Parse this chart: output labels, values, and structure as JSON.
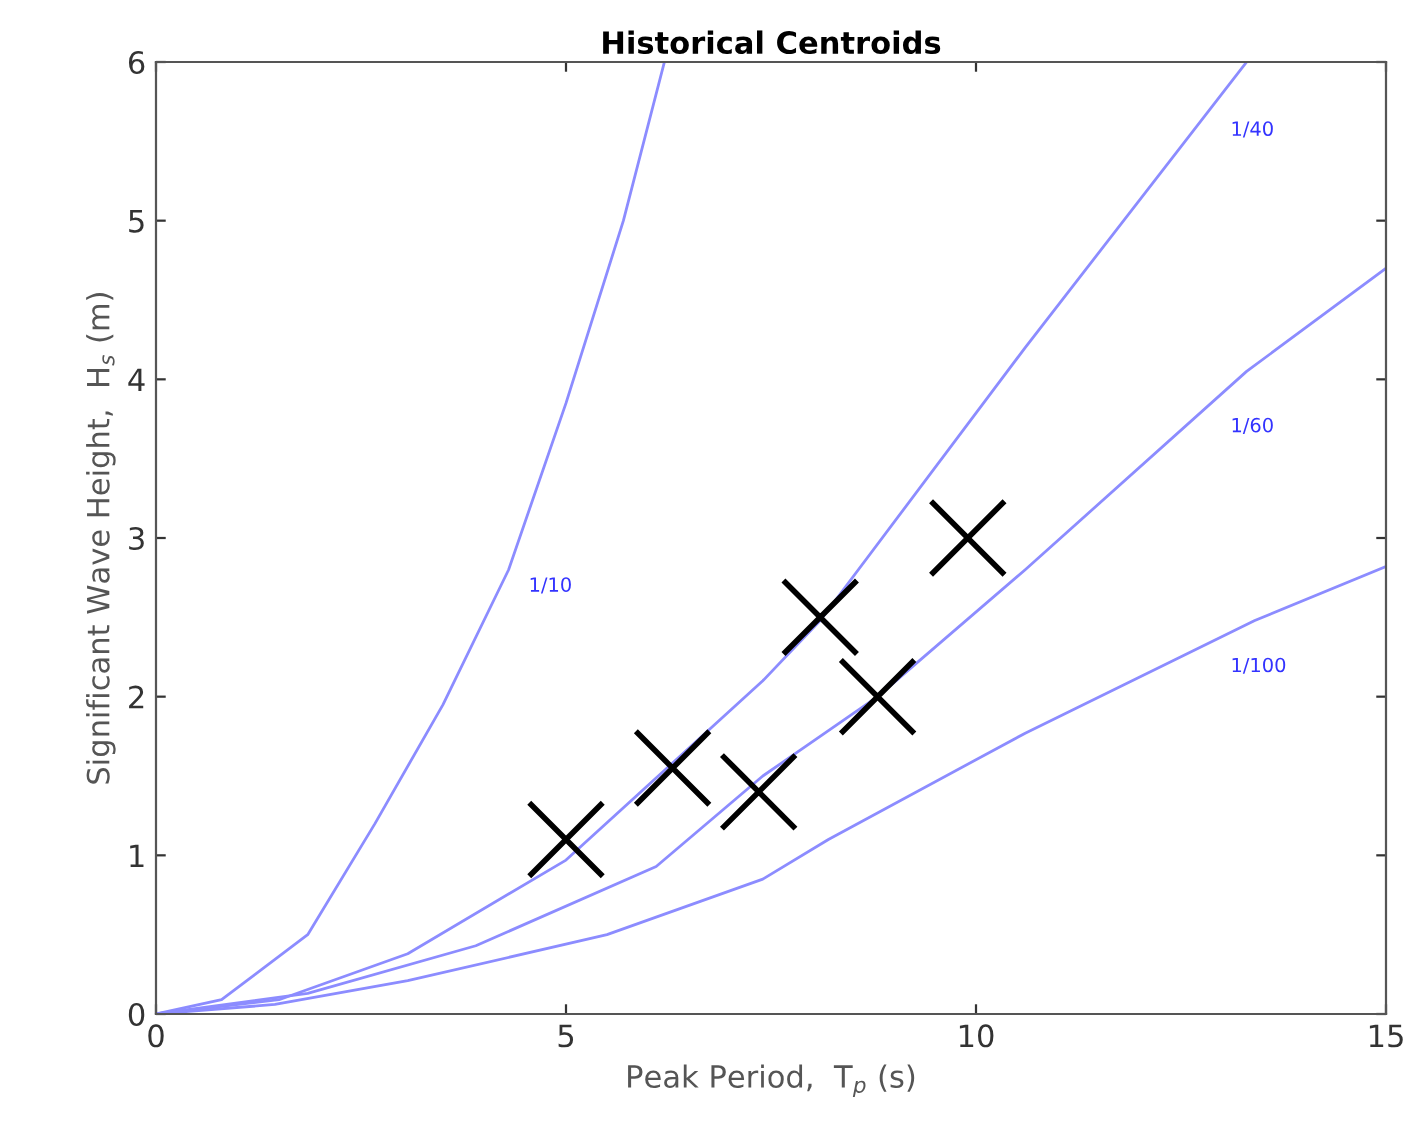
{
  "chart_data": {
    "type": "line",
    "title": "Historical Centroids",
    "xlabel": "Peak Period,  T$_{p}$ (s)",
    "ylabel": "Significant Wave Height,  H$_{s}$ (m)",
    "xlim": [
      0,
      15
    ],
    "ylim": [
      0,
      6
    ],
    "xticks": [
      0,
      5,
      10,
      15
    ],
    "yticks": [
      0,
      1,
      2,
      3,
      4,
      5,
      6
    ],
    "grid": false,
    "legend": false,
    "series": [
      {
        "name": "1/10",
        "color": "#8c8cff",
        "x": [
          0,
          0.8,
          1.85,
          2.67,
          3.5,
          4.3,
          5.0,
          5.7,
          6.2
        ],
        "values": [
          0,
          0.09,
          0.5,
          1.2,
          1.95,
          2.8,
          3.85,
          5.0,
          6.0
        ]
      },
      {
        "name": "1/40",
        "color": "#8c8cff",
        "x": [
          0,
          1.5,
          3.07,
          5.0,
          7.4,
          8.1,
          10.6,
          13.3
        ],
        "values": [
          0,
          0.09,
          0.38,
          0.97,
          2.1,
          2.48,
          4.2,
          6.0
        ]
      },
      {
        "name": "1/60",
        "color": "#8c8cff",
        "x": [
          0,
          1.85,
          3.9,
          6.1,
          7.4,
          8.8,
          10.6,
          13.3,
          15
        ],
        "values": [
          0,
          0.13,
          0.43,
          0.93,
          1.5,
          2.0,
          2.8,
          4.05,
          4.7
        ]
      },
      {
        "name": "1/100",
        "color": "#8c8cff",
        "x": [
          0,
          1.45,
          3.07,
          5.5,
          7.4,
          8.2,
          10.6,
          13.4,
          15
        ],
        "values": [
          0,
          0.06,
          0.21,
          0.5,
          0.85,
          1.1,
          1.77,
          2.48,
          2.82
        ]
      },
      {
        "type": "scatter",
        "color": "#000000",
        "marker": "cross",
        "x": [
          5.0,
          6.3,
          7.35,
          8.1,
          8.8,
          9.9
        ],
        "values": [
          1.1,
          1.55,
          1.4,
          2.5,
          2.0,
          3.0
        ]
      }
    ]
  }
}
